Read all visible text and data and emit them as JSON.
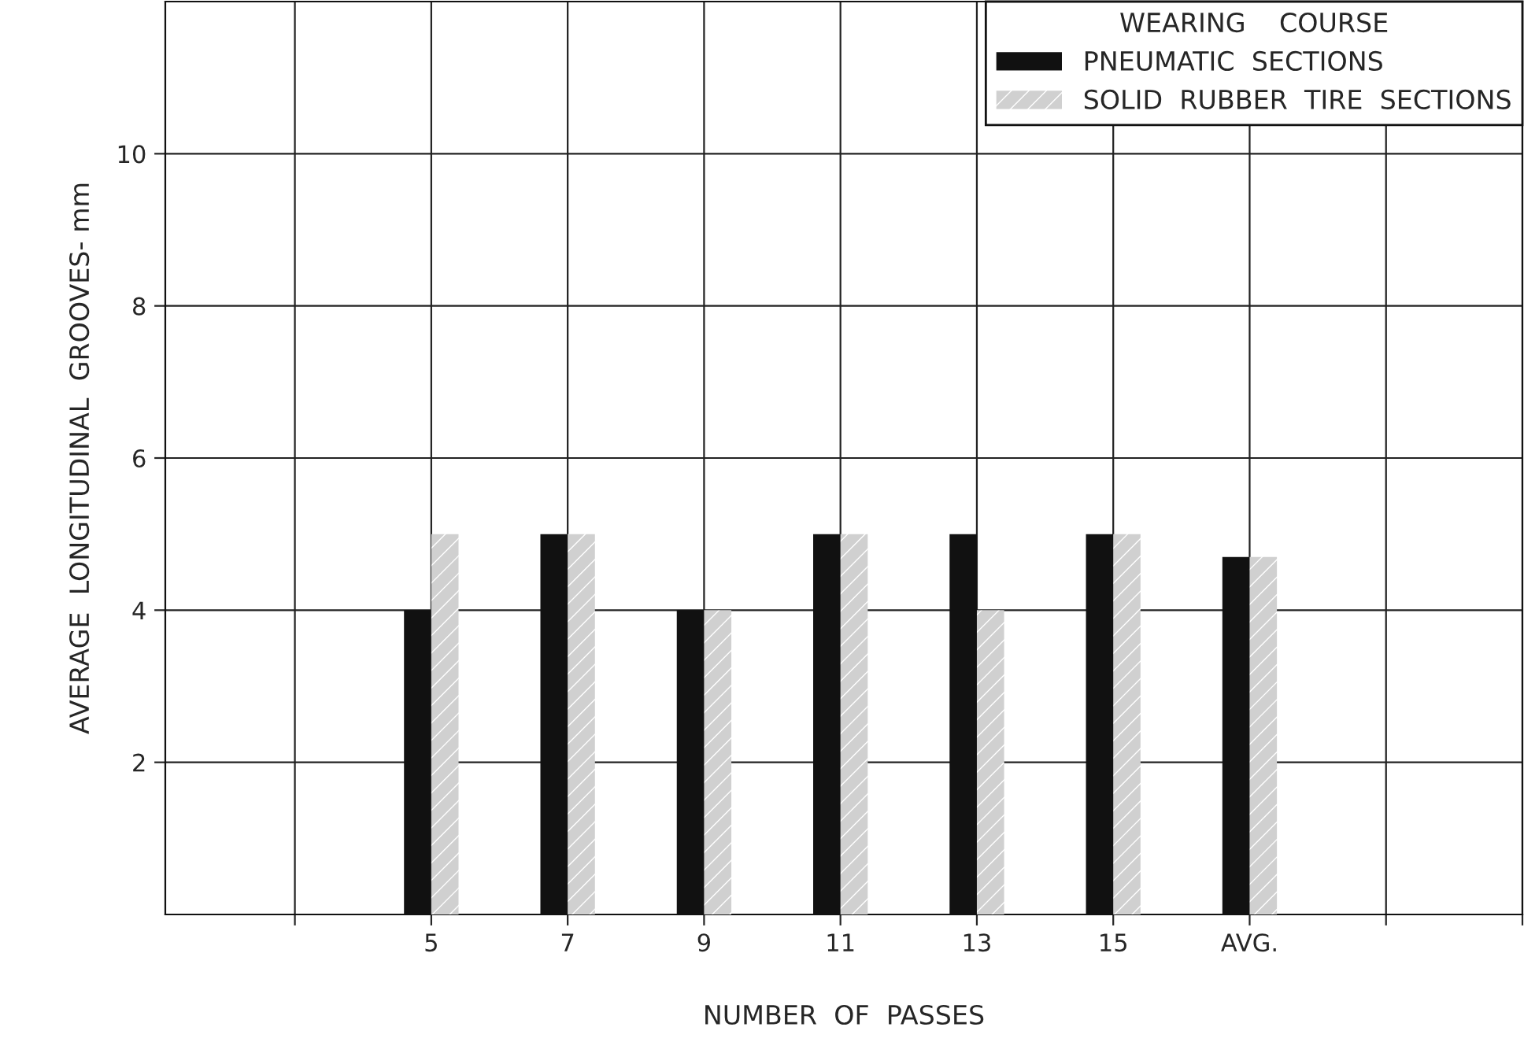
{
  "chart_data": {
    "type": "bar",
    "xlabel": "NUMBER  OF  PASSES",
    "ylabel": "AVERAGE  LONGITUDINAL  GROOVES- mm",
    "legend_title": "WEARING    COURSE",
    "categories": [
      null,
      "5",
      "7",
      "9",
      "11",
      "13",
      "15",
      "AVG.",
      null,
      null
    ],
    "series": [
      {
        "name": "PNEUMATIC  SECTIONS",
        "color": "#111111",
        "values": [
          null,
          4,
          5,
          4,
          5,
          5,
          5,
          4.7,
          null,
          null
        ]
      },
      {
        "name": "SOLID  RUBBER  TIRE  SECTIONS",
        "color": "#d0d0d0",
        "values": [
          null,
          5,
          5,
          4,
          5,
          4,
          5,
          4.7,
          null,
          null
        ]
      }
    ],
    "ylim": [
      0,
      12
    ],
    "yticks": [
      2,
      4,
      6,
      8,
      10
    ],
    "grid": true,
    "legend": "top right"
  }
}
